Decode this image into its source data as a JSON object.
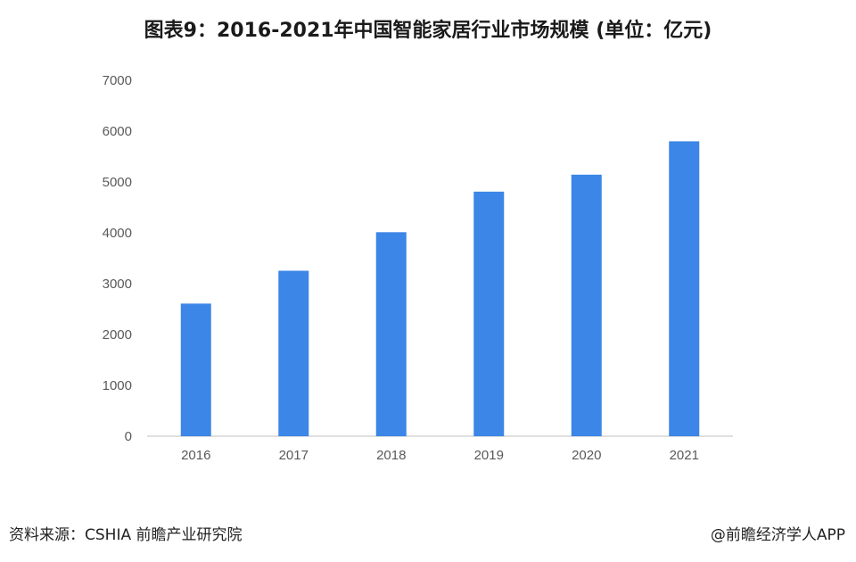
{
  "chart_data": {
    "type": "bar",
    "title": "图表9：2016-2021年中国智能家居行业市场规模 (单位：亿元)",
    "categories": [
      "2016",
      "2017",
      "2018",
      "2019",
      "2020",
      "2021"
    ],
    "values": [
      2608,
      3254,
      4012,
      4810,
      5144,
      5800
    ],
    "ylim": [
      0,
      7000
    ],
    "yticks": [
      0,
      1000,
      2000,
      3000,
      4000,
      5000,
      6000,
      7000
    ],
    "grid": false,
    "bar_color": "#3b86e6"
  },
  "footer": {
    "source": "资料来源：CSHIA 前瞻产业研究院",
    "credit": "@前瞻经济学人APP"
  }
}
